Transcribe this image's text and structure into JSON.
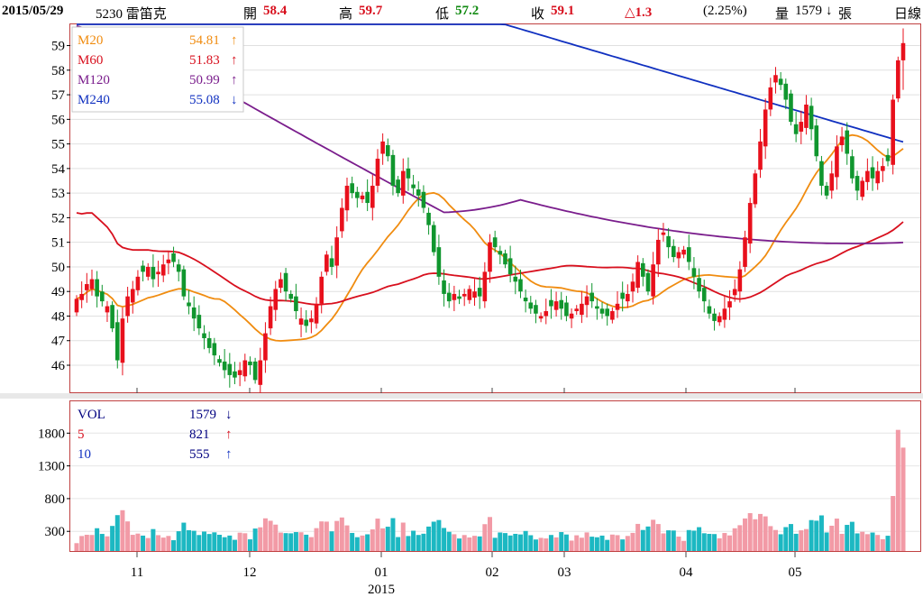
{
  "header": {
    "date": "2015/05/29",
    "stock": "5230 雷笛克",
    "open_label": "開",
    "open": "58.4",
    "high_label": "高",
    "high": "59.7",
    "low_label": "低",
    "low": "57.2",
    "close_label": "收",
    "close": "59.1",
    "change": "△1.3",
    "change_pct": "(2.25%)",
    "volume_label": "量",
    "volume": "1579",
    "volume_arrow": "↓",
    "volume_unit": "張",
    "period": "日線"
  },
  "price_legend": [
    {
      "name": "M20",
      "value": "54.81",
      "arrow": "↑",
      "color": "#f08c10"
    },
    {
      "name": "M60",
      "value": "51.83",
      "arrow": "↑",
      "color": "#d8101e"
    },
    {
      "name": "M120",
      "value": "50.99",
      "arrow": "↑",
      "color": "#7a1d8c"
    },
    {
      "name": "M240",
      "value": "55.08",
      "arrow": "↓",
      "color": "#1030c0"
    }
  ],
  "volume_legend": [
    {
      "name": "VOL",
      "value": "1579",
      "arrow": "↓",
      "color": "#000080",
      "name_color": "#000080"
    },
    {
      "name": "5",
      "value": "821",
      "arrow": "↑",
      "color": "#d8101e",
      "name_color": "#d8101e"
    },
    {
      "name": "10",
      "value": "555",
      "arrow": "↑",
      "color": "#1030c0",
      "name_color": "#1030c0"
    }
  ],
  "colors": {
    "up": "#e8101c",
    "down": "#10962e",
    "vol_up": "#f29aa6",
    "vol_down": "#1cb8c2",
    "frame": "#c04040"
  },
  "chart_data": {
    "type": "candlestick",
    "x_axis": {
      "tick_labels": [
        "11",
        "12",
        "01",
        "02",
        "03",
        "04",
        "05"
      ],
      "year_label": "2015"
    },
    "price_axis": {
      "ticks": [
        46,
        47,
        48,
        49,
        50,
        51,
        52,
        53,
        54,
        55,
        56,
        57,
        58,
        59
      ],
      "range": [
        44.9,
        59.9
      ]
    },
    "volume_axis": {
      "ticks": [
        300,
        800,
        1300,
        1800
      ],
      "range": [
        0,
        2300
      ]
    },
    "latest": {
      "date": "2015/05/29",
      "open": 58.4,
      "high": 59.7,
      "low": 57.2,
      "close": 59.1,
      "volume": 1579
    },
    "moving_averages_latest": {
      "M20": 54.81,
      "M60": 51.83,
      "M120": 50.99,
      "M240": 55.08
    },
    "volume_averages_latest": {
      "5": 821,
      "10": 555
    }
  }
}
